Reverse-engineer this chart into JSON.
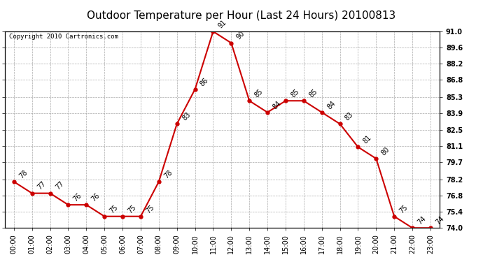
{
  "title": "Outdoor Temperature per Hour (Last 24 Hours) 20100813",
  "copyright": "Copyright 2010 Cartronics.com",
  "hours": [
    "00:00",
    "01:00",
    "02:00",
    "03:00",
    "04:00",
    "05:00",
    "06:00",
    "07:00",
    "08:00",
    "09:00",
    "10:00",
    "11:00",
    "12:00",
    "13:00",
    "14:00",
    "15:00",
    "16:00",
    "17:00",
    "18:00",
    "19:00",
    "20:00",
    "21:00",
    "22:00",
    "23:00"
  ],
  "temps": [
    78,
    77,
    77,
    76,
    76,
    75,
    75,
    75,
    78,
    83,
    86,
    91,
    90,
    85,
    84,
    85,
    85,
    84,
    83,
    81,
    80,
    75,
    74,
    74
  ],
  "ylim_min": 74.0,
  "ylim_max": 91.0,
  "yticks": [
    74.0,
    75.4,
    76.8,
    78.2,
    79.7,
    81.1,
    82.5,
    83.9,
    85.3,
    86.8,
    88.2,
    89.6,
    91.0
  ],
  "line_color": "#cc0000",
  "marker_color": "#cc0000",
  "grid_color": "#aaaaaa",
  "bg_color": "#ffffff",
  "plot_bg_color": "#ffffff",
  "title_fontsize": 11,
  "label_fontsize": 7,
  "tick_fontsize": 7,
  "copyright_fontsize": 6.5
}
